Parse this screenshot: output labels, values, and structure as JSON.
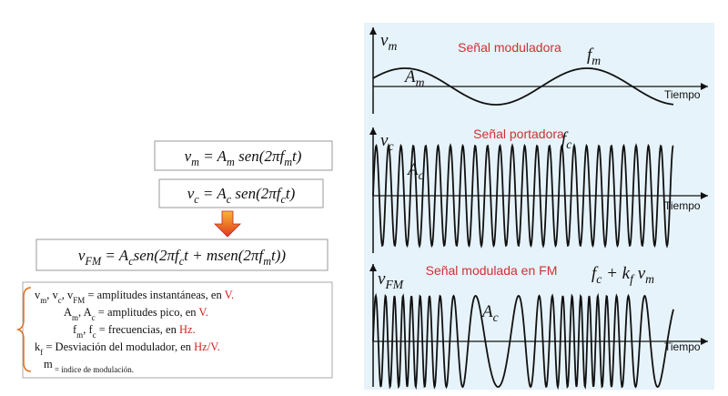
{
  "formulas": [
    {
      "pieces": [
        "v",
        "m",
        " = A",
        "m",
        " sen(2πf",
        "m",
        "t)"
      ]
    },
    {
      "pieces": [
        "v",
        "c",
        " = A",
        "c",
        " sen(2πf",
        "c",
        "t)"
      ]
    },
    {
      "pieces": [
        "v",
        "FM",
        " = A",
        "c",
        "sen(2πf",
        "c",
        "t + msen(2πf",
        "m",
        "t))"
      ]
    }
  ],
  "legend": [
    {
      "pieces": [
        "v",
        "m",
        ", v",
        "c",
        ", v",
        "FM",
        " = amplitudes instantáneas, en "
      ],
      "unit": "V."
    },
    {
      "pieces": [
        "A",
        "m",
        ", A",
        "c",
        " = amplitudes pico, en "
      ],
      "unit": "V."
    },
    {
      "pieces": [
        "f",
        "m",
        ", f",
        "c",
        " = frecuencias, en "
      ],
      "unit": "Hz."
    },
    {
      "pieces": [
        "k",
        "f",
        " = Desviación del modulador, en "
      ],
      "unit": "Hz/V."
    },
    {
      "pieces": [
        "m",
        " = índice de modulación."
      ]
    }
  ],
  "panels": [
    {
      "symbol": [
        "v",
        "m"
      ],
      "title": "Señal moduladora",
      "freq": [
        "f",
        "m"
      ],
      "amp": [
        "A",
        "m"
      ],
      "axis": "Tiempo"
    },
    {
      "symbol": [
        "v",
        "c"
      ],
      "title": "Señal portadora",
      "freq": [
        "f",
        "c"
      ],
      "amp": [
        "A",
        "c"
      ],
      "axis": "Tiempo"
    },
    {
      "symbol": [
        "v",
        "FM"
      ],
      "title": "Señal modulada en FM",
      "freq": [
        "f",
        "c",
        " + k",
        "f",
        " v",
        "m"
      ],
      "amp": [
        "A",
        "c"
      ],
      "axis": "Tiempo"
    }
  ]
}
